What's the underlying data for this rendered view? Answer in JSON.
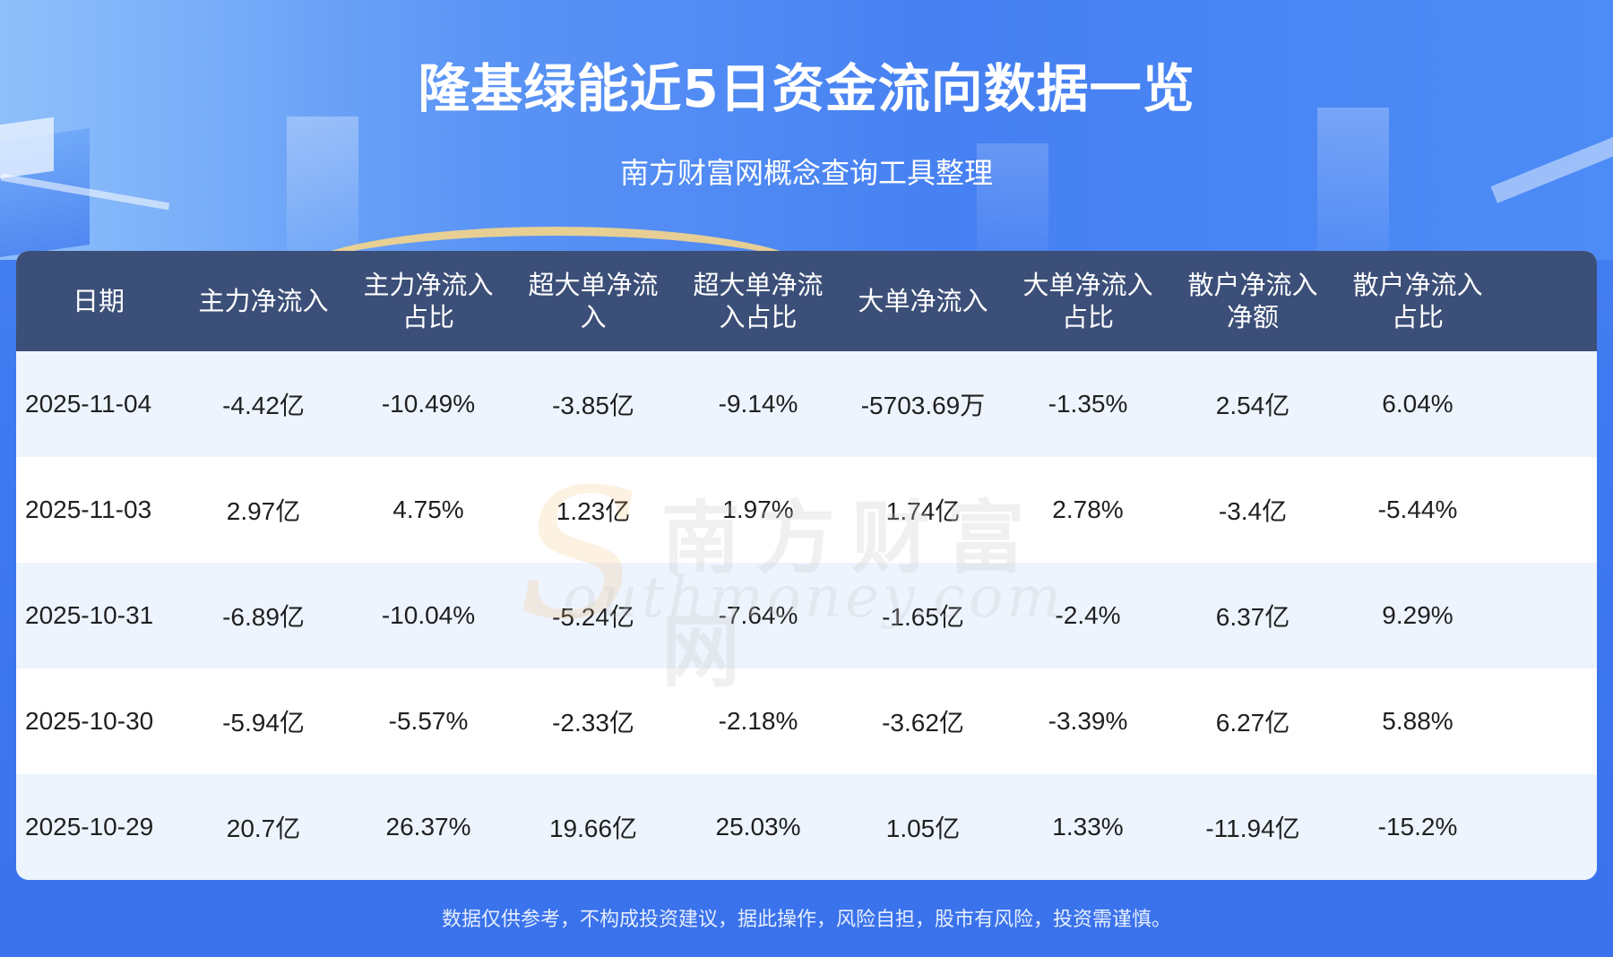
{
  "header": {
    "title": "隆基绿能近5日资金流向数据一览",
    "subtitle": "南方财富网概念查询工具整理"
  },
  "table": {
    "columns": [
      "日期",
      "主力净流入",
      "主力净流入占比",
      "超大单净流入",
      "超大单净流入占比",
      "大单净流入",
      "大单净流入占比",
      "散户净流入净额",
      "散户净流入占比"
    ],
    "rows": [
      [
        "2025-11-04",
        "-4.42亿",
        "-10.49%",
        "-3.85亿",
        "-9.14%",
        "-5703.69万",
        "-1.35%",
        "2.54亿",
        "6.04%"
      ],
      [
        "2025-11-03",
        "2.97亿",
        "4.75%",
        "1.23亿",
        "1.97%",
        "1.74亿",
        "2.78%",
        "-3.4亿",
        "-5.44%"
      ],
      [
        "2025-10-31",
        "-6.89亿",
        "-10.04%",
        "-5.24亿",
        "-7.64%",
        "-1.65亿",
        "-2.4%",
        "6.37亿",
        "9.29%"
      ],
      [
        "2025-10-30",
        "-5.94亿",
        "-5.57%",
        "-2.33亿",
        "-2.18%",
        "-3.62亿",
        "-3.39%",
        "6.27亿",
        "5.88%"
      ],
      [
        "2025-10-29",
        "20.7亿",
        "26.37%",
        "19.66亿",
        "25.03%",
        "1.05亿",
        "1.33%",
        "-11.94亿",
        "-15.2%"
      ]
    ]
  },
  "watermark": {
    "cn": "南方财富网",
    "s": "S",
    "en": "outhmoney.com"
  },
  "footer": {
    "disclaimer": "数据仅供参考，不构成投资建议，据此操作，风险自担，股市有风险，投资需谨慎。"
  },
  "colors": {
    "background": "#3f7af0",
    "table_header": "#3c4f78",
    "row_alt": "#edf4fe",
    "text": "#1f1f1f"
  }
}
